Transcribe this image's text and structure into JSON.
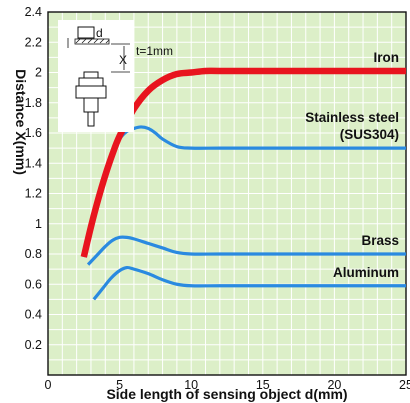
{
  "chart_data": {
    "type": "line",
    "xlabel": "Side length of sensing object d(mm)",
    "ylabel": "Distance X(mm)",
    "xlim": [
      0,
      25
    ],
    "ylim": [
      0,
      2.4
    ],
    "x_ticks": [
      0,
      5,
      10,
      15,
      20,
      25
    ],
    "y_ticks": [
      0.2,
      0.4,
      0.6,
      0.8,
      1,
      1.2,
      1.4,
      1.6,
      1.8,
      2,
      2.2,
      2.4
    ],
    "grid": true,
    "inset_annotation": {
      "d_label": "d",
      "t_label": "t=1mm",
      "x_label": "X"
    },
    "series": [
      {
        "name": "Iron",
        "label_lines": [
          "Iron"
        ],
        "color": "#e8141e",
        "x": [
          2.5,
          3.0,
          3.5,
          4.0,
          4.5,
          5.0,
          6.0,
          7.0,
          8.0,
          9.0,
          10.0,
          11.0,
          12.0,
          15.0,
          20.0,
          25.0
        ],
        "y": [
          0.78,
          0.98,
          1.16,
          1.32,
          1.46,
          1.58,
          1.76,
          1.88,
          1.95,
          1.99,
          2.0,
          2.01,
          2.01,
          2.01,
          2.01,
          2.01
        ]
      },
      {
        "name": "Stainless steel (SUS304)",
        "label_lines": [
          "Stainless steel",
          "(SUS304)"
        ],
        "color": "#2a8ae0",
        "x": [
          2.5,
          3.0,
          3.5,
          4.0,
          4.5,
          5.0,
          5.5,
          6.0,
          6.5,
          7.0,
          7.5,
          8.0,
          9.0,
          10.0,
          12.0,
          15.0,
          20.0,
          25.0
        ],
        "y": [
          0.78,
          0.98,
          1.17,
          1.35,
          1.47,
          1.56,
          1.61,
          1.63,
          1.64,
          1.63,
          1.6,
          1.56,
          1.51,
          1.5,
          1.5,
          1.5,
          1.5,
          1.5
        ]
      },
      {
        "name": "Brass",
        "label_lines": [
          "Brass"
        ],
        "color": "#2a8ae0",
        "x": [
          2.8,
          3.5,
          4.0,
          4.5,
          5.0,
          5.5,
          6.0,
          7.0,
          8.0,
          9.0,
          10.0,
          12.0,
          15.0,
          20.0,
          25.0
        ],
        "y": [
          0.73,
          0.8,
          0.85,
          0.89,
          0.91,
          0.91,
          0.9,
          0.87,
          0.84,
          0.81,
          0.8,
          0.8,
          0.8,
          0.8,
          0.8
        ]
      },
      {
        "name": "Aluminum",
        "label_lines": [
          "Aluminum"
        ],
        "color": "#2a8ae0",
        "x": [
          3.2,
          3.8,
          4.4,
          5.0,
          5.5,
          6.0,
          7.0,
          8.0,
          9.0,
          10.0,
          12.0,
          15.0,
          20.0,
          25.0
        ],
        "y": [
          0.5,
          0.57,
          0.64,
          0.69,
          0.71,
          0.7,
          0.67,
          0.63,
          0.6,
          0.59,
          0.59,
          0.59,
          0.59,
          0.59
        ]
      }
    ]
  }
}
